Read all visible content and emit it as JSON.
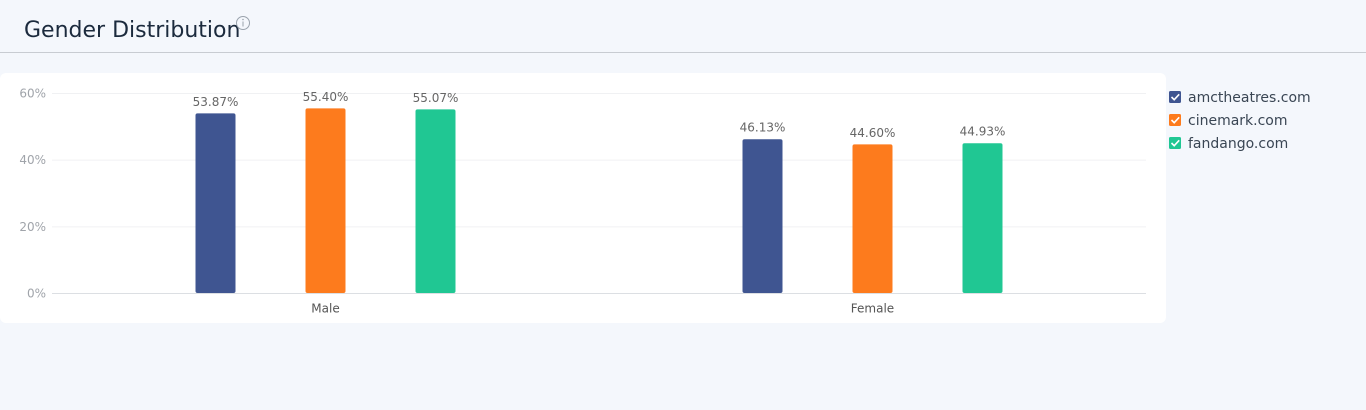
{
  "chart_data": {
    "type": "bar",
    "title": "Gender Distribution",
    "categories": [
      "Male",
      "Female"
    ],
    "series": [
      {
        "name": "amctheatres.com",
        "color": "#3f5591",
        "values": [
          53.87,
          46.13
        ],
        "value_labels": [
          "53.87%",
          "46.13%"
        ]
      },
      {
        "name": "cinemark.com",
        "color": "#fd7b1d",
        "values": [
          55.4,
          44.6
        ],
        "value_labels": [
          "55.40%",
          "44.60%"
        ]
      },
      {
        "name": "fandango.com",
        "color": "#20c793",
        "values": [
          55.07,
          44.93
        ],
        "value_labels": [
          "55.07%",
          "44.93%"
        ]
      }
    ],
    "ylim": [
      0,
      60
    ],
    "yticks": [
      {
        "value": 0,
        "label": "0%"
      },
      {
        "value": 20,
        "label": "20%"
      },
      {
        "value": 40,
        "label": "40%"
      },
      {
        "value": 60,
        "label": "60%"
      }
    ],
    "grid": true,
    "legend": "right"
  }
}
